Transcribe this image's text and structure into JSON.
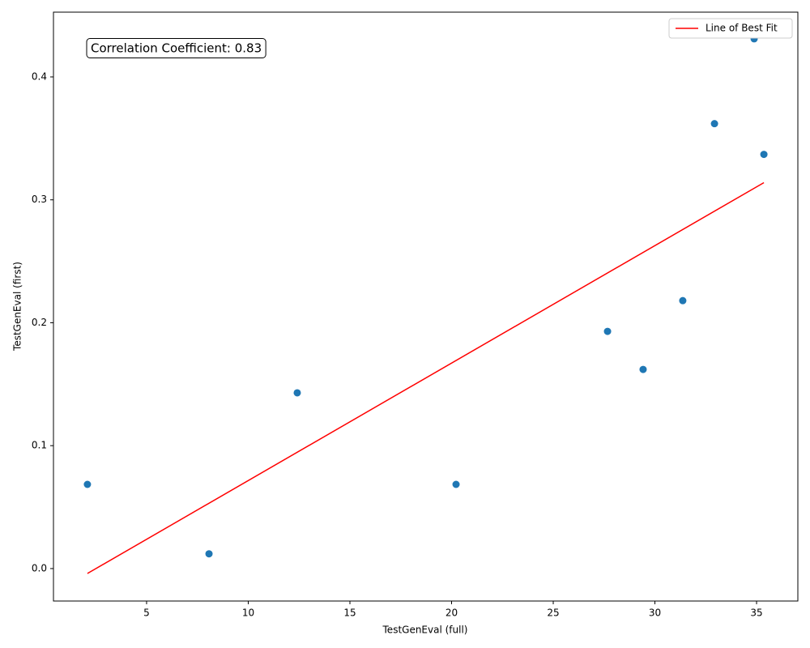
{
  "chart_data": {
    "type": "scatter",
    "xlabel": "TestGenEval (full)",
    "ylabel": "TestGenEval (first)",
    "annotation": "Correlation Coefficient: 0.83",
    "x": [
      2.09,
      8.07,
      12.41,
      20.22,
      27.67,
      29.42,
      31.37,
      32.93,
      34.88,
      35.36
    ],
    "values": [
      0.0685,
      0.012,
      0.143,
      0.0685,
      0.193,
      0.162,
      0.218,
      0.362,
      0.431,
      0.337
    ],
    "color": "#1f77b4",
    "fit": {
      "name": "Line of Best Fit",
      "color": "#ff0000",
      "x": [
        2.09,
        35.36
      ],
      "values": [
        -0.004,
        0.314
      ]
    },
    "xlim": [
      0.42,
      37.03
    ],
    "ylim": [
      -0.0264,
      0.4527
    ],
    "xticks": [
      5,
      10,
      15,
      20,
      25,
      30,
      35
    ],
    "yticks": [
      {
        "value": 0,
        "label": "0.0"
      },
      0.1,
      0.2,
      0.3,
      0.4
    ],
    "legend": "upper right"
  }
}
